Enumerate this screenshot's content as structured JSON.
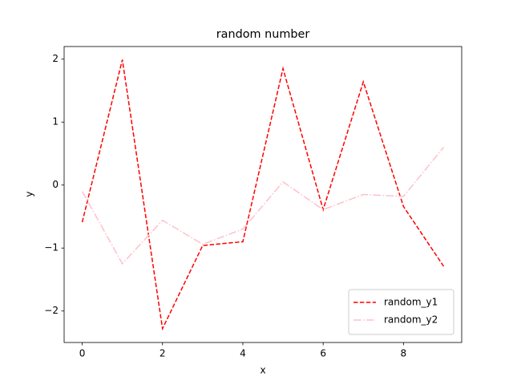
{
  "chart_data": {
    "type": "line",
    "title": "random number",
    "x_label": "x",
    "y_label": "y",
    "x": [
      0,
      1,
      2,
      3,
      4,
      5,
      6,
      7,
      8,
      9
    ],
    "series": [
      {
        "name": "random_y1",
        "color": "#ff0000",
        "linestyle": "dashed",
        "values": [
          -0.59,
          1.99,
          -2.28,
          -0.96,
          -0.9,
          1.85,
          -0.39,
          1.64,
          -0.34,
          -1.29
        ]
      },
      {
        "name": "random_y2",
        "color": "#ffc0cb",
        "linestyle": "dashdot",
        "values": [
          -0.1,
          -1.25,
          -0.56,
          -0.94,
          -0.7,
          0.05,
          -0.39,
          -0.15,
          -0.18,
          0.6
        ]
      }
    ],
    "xlim": [
      -0.45,
      9.45
    ],
    "xticks": [
      0,
      2,
      4,
      6,
      8
    ],
    "ylim": [
      -2.5,
      2.2
    ],
    "yticks": [
      {
        "value": -2,
        "label": "−2"
      },
      {
        "value": -1,
        "label": "−1"
      },
      0,
      1,
      2
    ],
    "legend": "lower right",
    "grid": false
  }
}
